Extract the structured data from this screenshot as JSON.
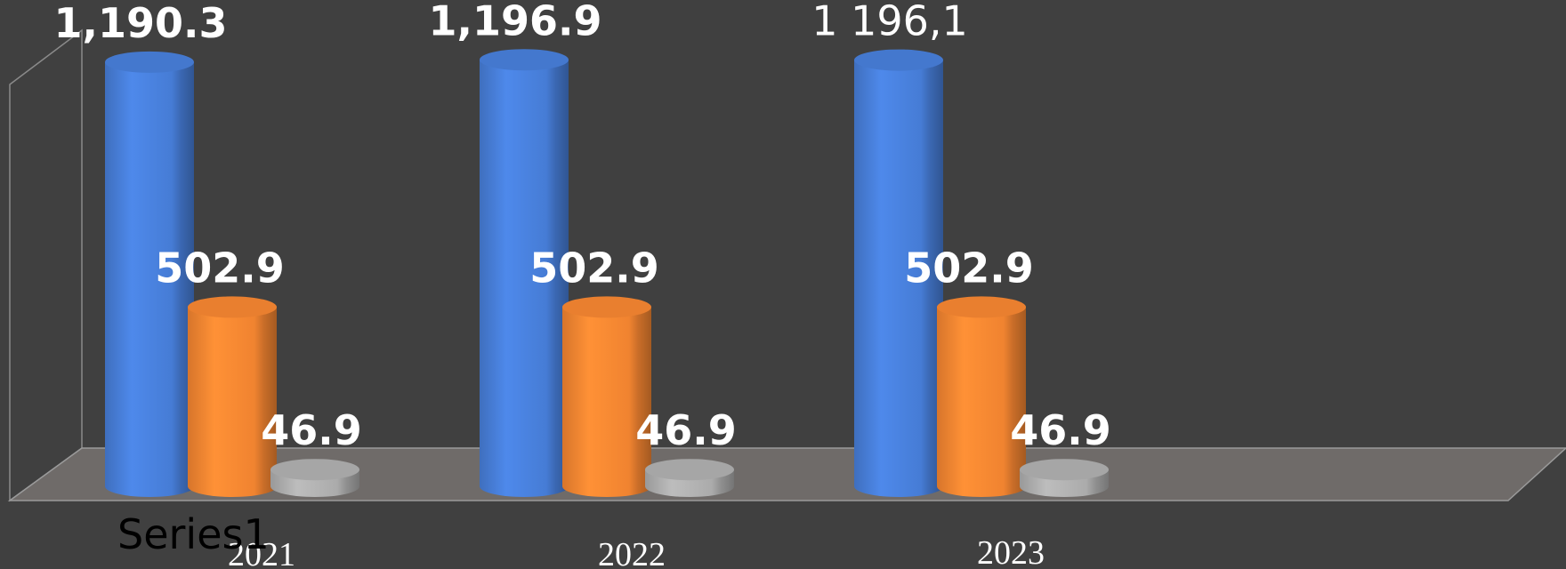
{
  "chart_data": {
    "type": "bar3d",
    "categories": [
      "2021",
      "2022",
      "2023"
    ],
    "series": [
      {
        "color": "#4a82e0",
        "values": [
          1190.3,
          1196.9,
          1196.1
        ],
        "value_labels": [
          "1,190.3",
          "1,196.9",
          "1 196,1"
        ]
      },
      {
        "color": "#fd8a33",
        "values": [
          502.9,
          502.9,
          502.9
        ],
        "value_labels": [
          "502.9",
          "502.9",
          "502.9"
        ]
      },
      {
        "color": "#b4b4b4",
        "values": [
          46.9,
          46.9,
          46.9
        ],
        "value_labels": [
          "46.9",
          "46.9",
          "46.9"
        ]
      }
    ],
    "ylim": [
      0,
      1200
    ],
    "annotation": "Series1"
  }
}
